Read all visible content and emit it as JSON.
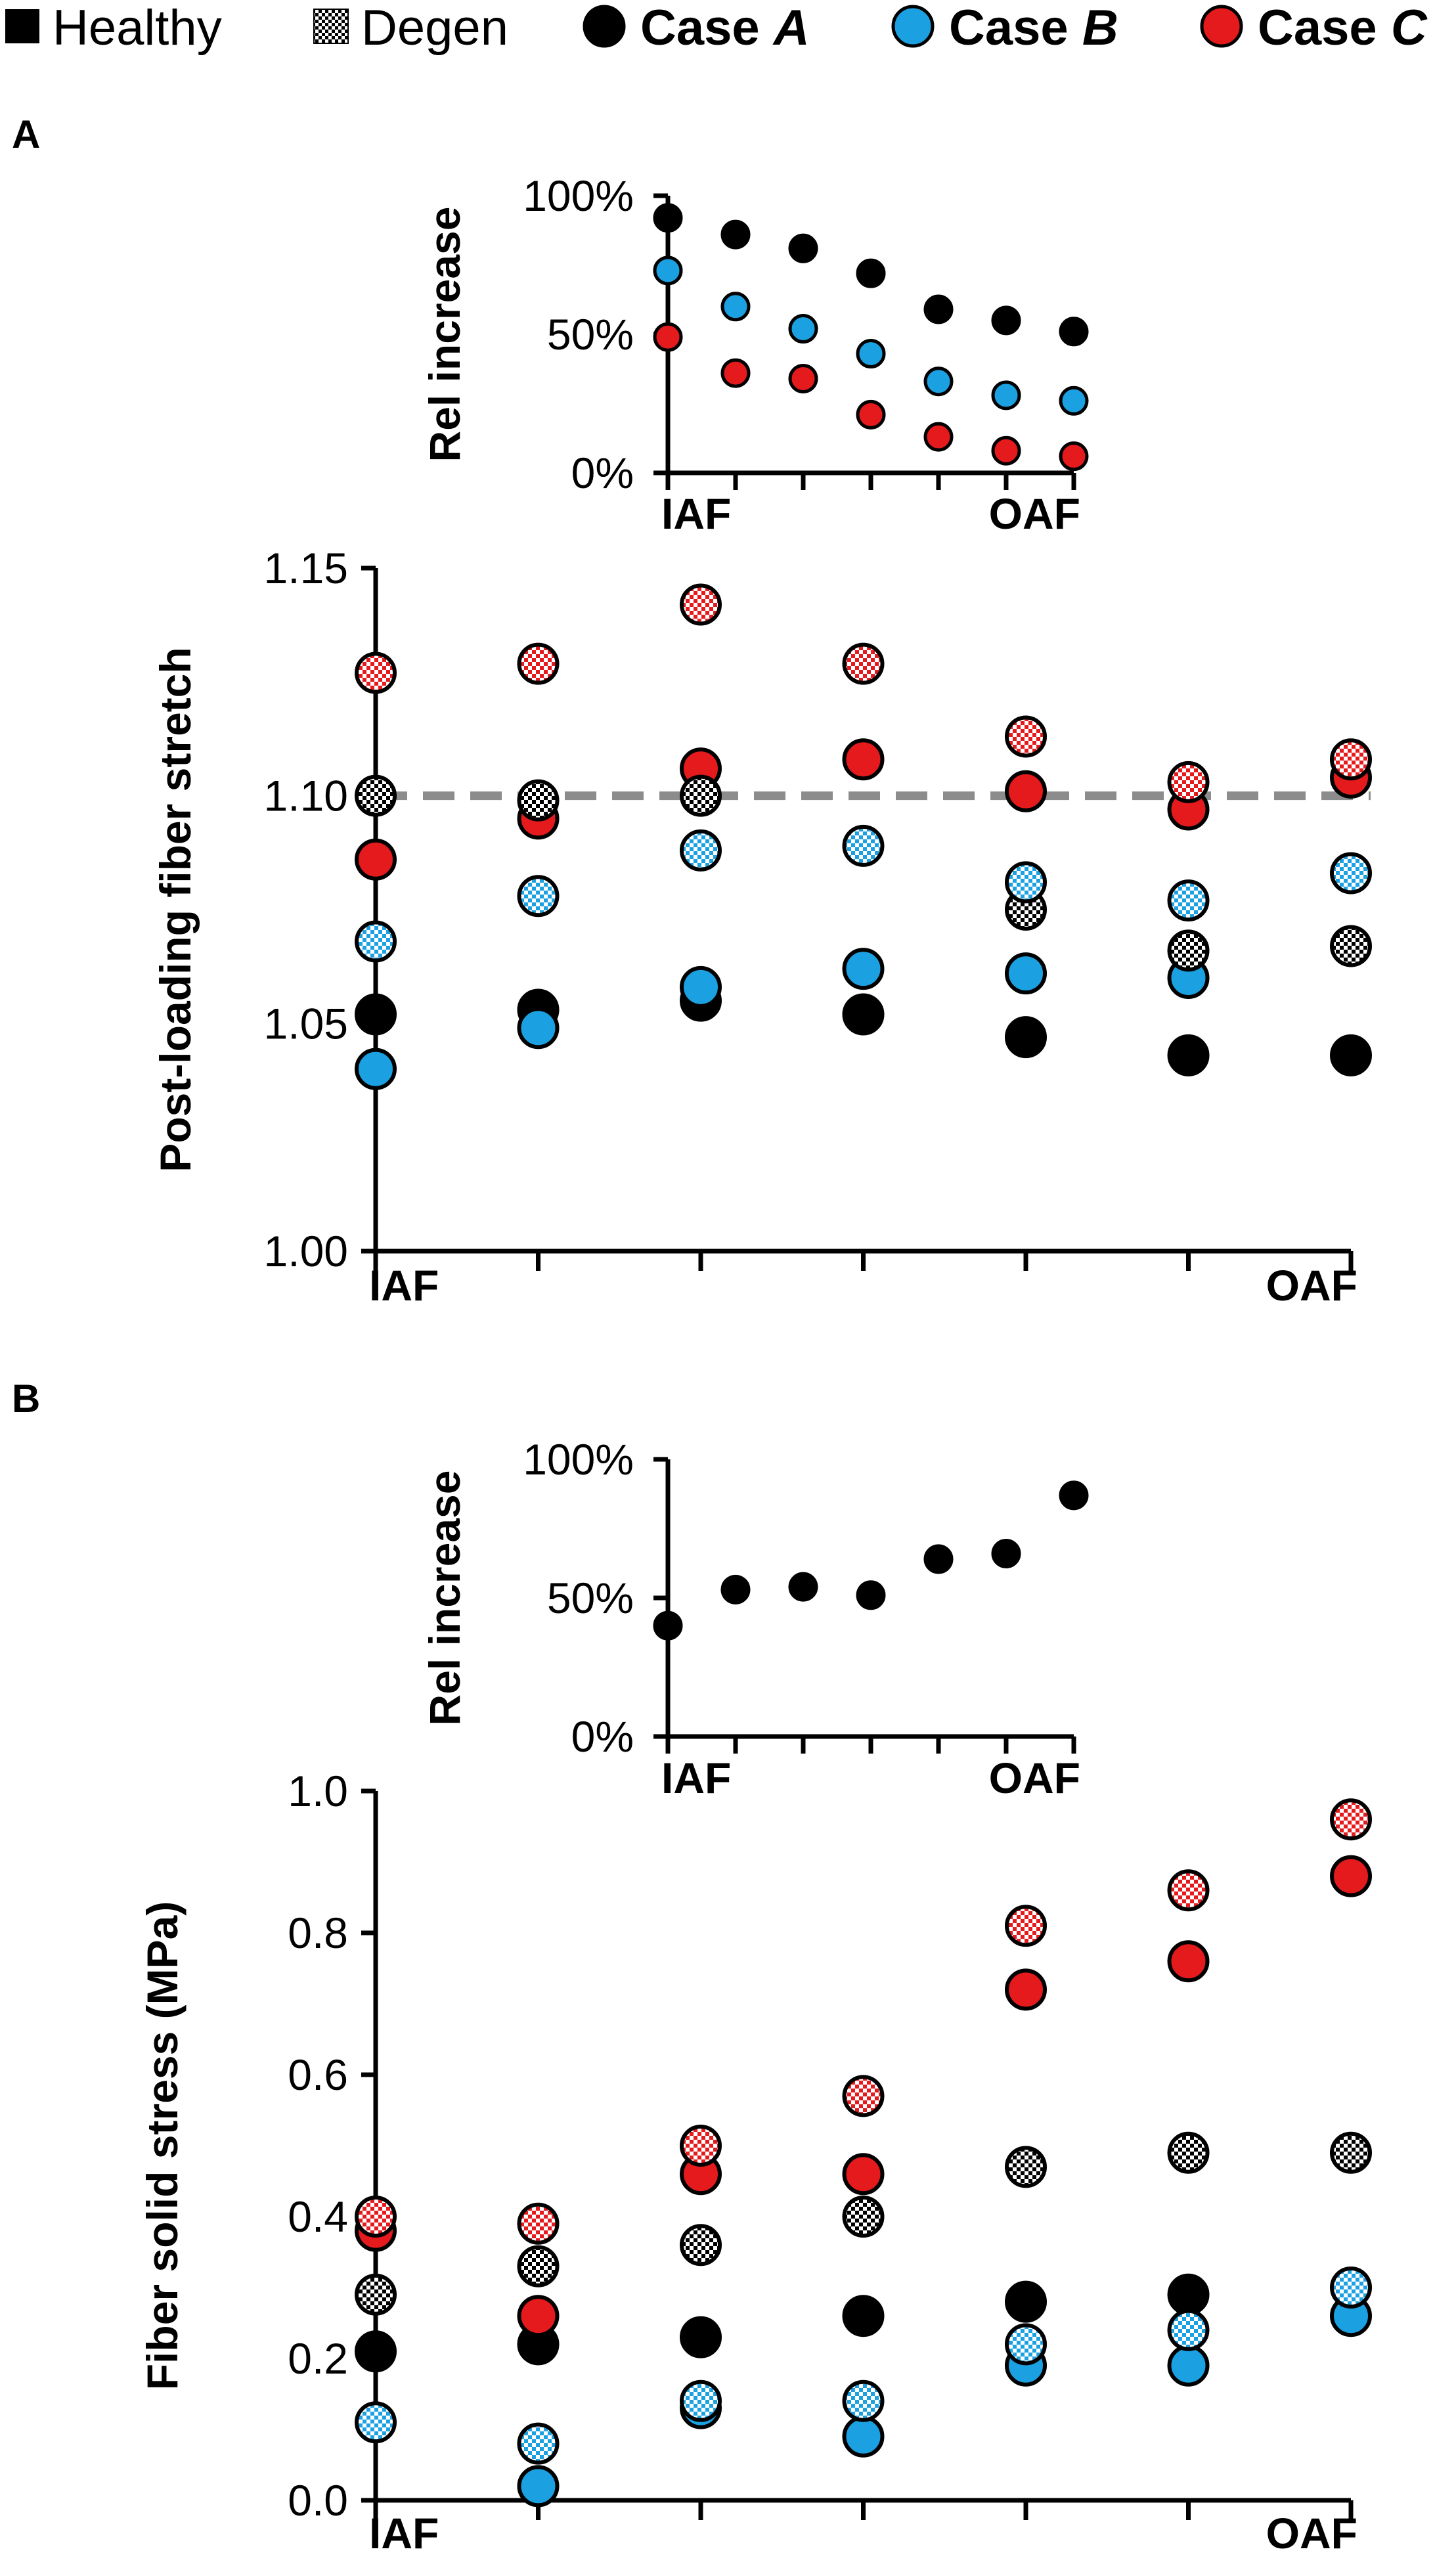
{
  "colors": {
    "case_a": "#000000",
    "case_b": "#1BA1E2",
    "case_c": "#E41A1C",
    "reference_line": "#8C8C8C"
  },
  "legend": [
    {
      "key": "healthy",
      "marker": "filled-square-icon",
      "label": "Healthy",
      "bold": false
    },
    {
      "key": "degen",
      "marker": "checkered-square-icon",
      "label": "Degen",
      "bold": false
    },
    {
      "key": "case_a",
      "marker": "black-circle-icon",
      "label_prefix": "Case ",
      "label_italic": "A",
      "bold": true
    },
    {
      "key": "case_b",
      "marker": "blue-circle-icon",
      "label_prefix": "Case ",
      "label_italic": "B",
      "bold": true
    },
    {
      "key": "case_c",
      "marker": "red-circle-icon",
      "label_prefix": "Case ",
      "label_italic": "C",
      "bold": true
    }
  ],
  "panels": {
    "a": {
      "letter": "A"
    },
    "b": {
      "letter": "B"
    }
  },
  "chart_data": [
    {
      "id": "a_main",
      "type": "scatter",
      "panel": "A",
      "ylabel": "Post-loading fiber stretch",
      "xlabel": "",
      "x_end_labels": [
        "IAF",
        "OAF"
      ],
      "positions": 7,
      "ylim": [
        1.0,
        1.15
      ],
      "yticks": [
        1.0,
        1.05,
        1.1,
        1.15
      ],
      "ytick_labels": [
        "1.00",
        "1.05",
        "1.10",
        "1.15"
      ],
      "reference_line": 1.1,
      "series": [
        {
          "name": "Case A Healthy",
          "case": "case_a",
          "state": "healthy",
          "values": [
            1.052,
            1.053,
            1.055,
            1.052,
            1.047,
            1.043,
            1.043
          ]
        },
        {
          "name": "Case B Healthy",
          "case": "case_b",
          "state": "healthy",
          "values": [
            1.04,
            1.049,
            1.058,
            1.062,
            1.061,
            1.06,
            null
          ]
        },
        {
          "name": "Case C Healthy",
          "case": "case_c",
          "state": "healthy",
          "values": [
            1.086,
            1.095,
            1.106,
            1.108,
            1.101,
            1.097,
            1.104
          ]
        },
        {
          "name": "Case A Degen",
          "case": "case_a",
          "state": "degen",
          "values": [
            1.1,
            1.099,
            1.1,
            null,
            1.075,
            1.066,
            1.067
          ]
        },
        {
          "name": "Case B Degen",
          "case": "case_b",
          "state": "degen",
          "values": [
            1.068,
            1.078,
            1.088,
            1.089,
            1.081,
            1.077,
            1.083
          ]
        },
        {
          "name": "Case C Degen",
          "case": "case_c",
          "state": "degen",
          "values": [
            1.127,
            1.129,
            1.142,
            1.129,
            1.113,
            1.103,
            1.108
          ]
        }
      ]
    },
    {
      "id": "a_inset",
      "type": "scatter",
      "panel": "A",
      "ylabel": "Rel increase",
      "x_end_labels": [
        "IAF",
        "OAF"
      ],
      "positions": 7,
      "ylim": [
        0,
        100
      ],
      "yticks": [
        0,
        50,
        100
      ],
      "ytick_labels": [
        "0%",
        "50%",
        "100%"
      ],
      "series": [
        {
          "name": "Case A",
          "case": "case_a",
          "values": [
            92,
            86,
            81,
            72,
            59,
            55,
            51
          ]
        },
        {
          "name": "Case B",
          "case": "case_b",
          "values": [
            73,
            60,
            52,
            43,
            33,
            28,
            26
          ]
        },
        {
          "name": "Case C",
          "case": "case_c",
          "values": [
            49,
            36,
            34,
            21,
            13,
            8,
            6
          ]
        }
      ]
    },
    {
      "id": "b_main",
      "type": "scatter",
      "panel": "B",
      "ylabel": "Fiber solid stress (MPa)",
      "xlabel": "",
      "x_end_labels": [
        "IAF",
        "OAF"
      ],
      "positions": 7,
      "ylim": [
        0.0,
        1.0
      ],
      "yticks": [
        0.0,
        0.2,
        0.4,
        0.6,
        0.8,
        1.0
      ],
      "ytick_labels": [
        "0.0",
        "0.2",
        "0.4",
        "0.6",
        "0.8",
        "1.0"
      ],
      "series": [
        {
          "name": "Case A Healthy",
          "case": "case_a",
          "state": "healthy",
          "values": [
            0.21,
            0.22,
            0.23,
            0.26,
            0.28,
            0.29,
            null
          ]
        },
        {
          "name": "Case B Healthy",
          "case": "case_b",
          "state": "healthy",
          "values": [
            null,
            0.02,
            0.13,
            0.09,
            0.19,
            0.19,
            0.26
          ]
        },
        {
          "name": "Case C Healthy",
          "case": "case_c",
          "state": "healthy",
          "values": [
            0.38,
            0.26,
            0.46,
            0.46,
            0.72,
            0.76,
            0.88
          ]
        },
        {
          "name": "Case A Degen",
          "case": "case_a",
          "state": "degen",
          "values": [
            0.29,
            0.33,
            0.36,
            0.4,
            0.47,
            0.49,
            0.49
          ]
        },
        {
          "name": "Case B Degen",
          "case": "case_b",
          "state": "degen",
          "values": [
            0.11,
            0.08,
            0.14,
            0.14,
            0.22,
            0.24,
            0.3
          ]
        },
        {
          "name": "Case C Degen",
          "case": "case_c",
          "state": "degen",
          "values": [
            0.4,
            0.39,
            0.5,
            0.57,
            0.81,
            0.86,
            0.96
          ]
        }
      ]
    },
    {
      "id": "b_inset",
      "type": "scatter",
      "panel": "B",
      "ylabel": "Rel increase",
      "x_end_labels": [
        "IAF",
        "OAF"
      ],
      "positions": 7,
      "ylim": [
        0,
        100
      ],
      "yticks": [
        0,
        50,
        100
      ],
      "ytick_labels": [
        "0%",
        "50%",
        "100%"
      ],
      "series": [
        {
          "name": "Case A",
          "case": "case_a",
          "values": [
            40,
            53,
            54,
            51,
            64,
            66,
            87
          ]
        }
      ]
    }
  ]
}
